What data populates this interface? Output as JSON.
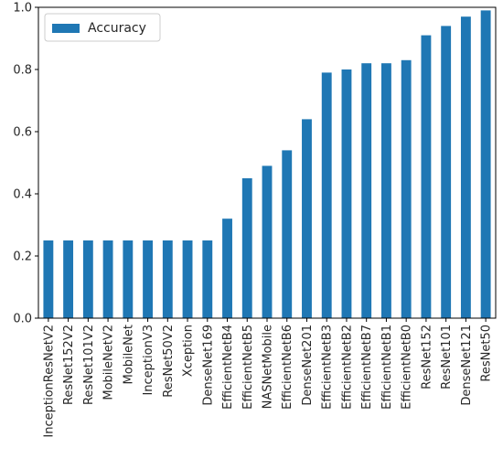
{
  "chart_data": {
    "type": "bar",
    "title": "",
    "xlabel": "",
    "ylabel": "",
    "ylim": [
      0.0,
      1.0
    ],
    "yticks": [
      "0.0",
      "0.2",
      "0.4",
      "0.6",
      "0.8",
      "1.0"
    ],
    "grid": false,
    "legend_position": "top-left",
    "categories": [
      "InceptionResNetV2",
      "ResNet152V2",
      "ResNet101V2",
      "MobileNetV2",
      "MobileNet",
      "InceptionV3",
      "ResNet50V2",
      "Xception",
      "DenseNet169",
      "EfficientNetB4",
      "EfficientNetB5",
      "NASNetMobile",
      "EfficientNetB6",
      "DenseNet201",
      "EfficientNetB3",
      "EfficientNetB2",
      "EfficientNetB7",
      "EfficientNetB1",
      "EfficientNetB0",
      "ResNet152",
      "ResNet101",
      "DenseNet121",
      "ResNet50"
    ],
    "series": [
      {
        "name": "Accuracy",
        "color": "#1f77b4",
        "values": [
          0.25,
          0.25,
          0.25,
          0.25,
          0.25,
          0.25,
          0.25,
          0.25,
          0.25,
          0.32,
          0.45,
          0.49,
          0.54,
          0.64,
          0.79,
          0.8,
          0.82,
          0.82,
          0.83,
          0.91,
          0.94,
          0.97,
          0.99
        ]
      }
    ]
  }
}
